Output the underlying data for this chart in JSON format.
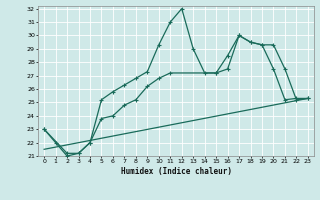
{
  "xlabel": "Humidex (Indice chaleur)",
  "xlim": [
    -0.5,
    23.5
  ],
  "ylim": [
    21,
    32.2
  ],
  "yticks": [
    21,
    22,
    23,
    24,
    25,
    26,
    27,
    28,
    29,
    30,
    31,
    32
  ],
  "xticks": [
    0,
    1,
    2,
    3,
    4,
    5,
    6,
    7,
    8,
    9,
    10,
    11,
    12,
    13,
    14,
    15,
    16,
    17,
    18,
    19,
    20,
    21,
    22,
    23
  ],
  "bg_color": "#cfe9e8",
  "grid_color": "#b0d8d8",
  "line_color": "#1a6b5a",
  "line1_x": [
    0,
    1,
    2,
    3,
    4,
    5,
    6,
    7,
    8,
    9,
    10,
    11,
    12,
    13,
    14,
    15,
    16,
    17,
    18,
    19,
    20,
    21,
    22,
    23
  ],
  "line1_y": [
    23.0,
    22.0,
    21.0,
    21.2,
    22.0,
    25.2,
    25.8,
    26.3,
    26.8,
    27.3,
    29.3,
    31.0,
    32.0,
    29.0,
    27.2,
    27.2,
    28.5,
    30.0,
    29.5,
    29.3,
    27.5,
    25.2,
    25.3,
    25.3
  ],
  "line2_x": [
    0,
    2,
    3,
    4,
    5,
    6,
    7,
    8,
    9,
    10,
    11,
    15,
    16,
    17,
    18,
    19,
    20,
    21,
    22,
    23
  ],
  "line2_y": [
    23.0,
    21.2,
    21.2,
    22.0,
    23.8,
    24.0,
    24.8,
    25.2,
    26.2,
    26.8,
    27.2,
    27.2,
    27.5,
    30.0,
    29.5,
    29.3,
    29.3,
    27.5,
    25.2,
    25.3
  ],
  "line3_x": [
    0,
    23
  ],
  "line3_y": [
    21.5,
    25.3
  ]
}
